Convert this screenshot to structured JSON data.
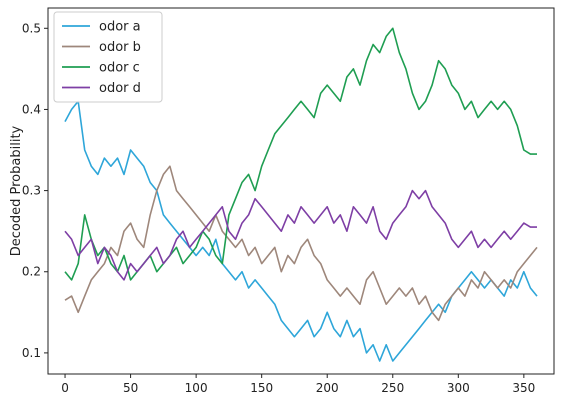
{
  "chart_data": {
    "type": "line",
    "title": "",
    "xlabel": "",
    "ylabel": "Decoded Probability",
    "xlim": [
      -13,
      373
    ],
    "ylim": [
      0.074,
      0.525
    ],
    "xticks": [
      0,
      50,
      100,
      150,
      200,
      250,
      300,
      350
    ],
    "yticks": [
      0.1,
      0.2,
      0.3,
      0.4,
      0.5
    ],
    "grid": false,
    "legend": "top-left",
    "series": [
      {
        "name": "odor a",
        "color": "#2ea6d9",
        "x": [
          0,
          5,
          10,
          15,
          20,
          25,
          30,
          35,
          40,
          45,
          50,
          55,
          60,
          65,
          70,
          75,
          80,
          85,
          90,
          95,
          100,
          105,
          110,
          115,
          120,
          125,
          130,
          135,
          140,
          145,
          150,
          155,
          160,
          165,
          170,
          175,
          180,
          185,
          190,
          195,
          200,
          205,
          210,
          215,
          220,
          225,
          230,
          235,
          240,
          245,
          250,
          255,
          260,
          265,
          270,
          275,
          280,
          285,
          290,
          295,
          300,
          305,
          310,
          315,
          320,
          325,
          330,
          335,
          340,
          345,
          350,
          355,
          360
        ],
        "values": [
          0.385,
          0.4,
          0.41,
          0.35,
          0.33,
          0.32,
          0.34,
          0.33,
          0.34,
          0.32,
          0.35,
          0.34,
          0.33,
          0.31,
          0.3,
          0.27,
          0.26,
          0.25,
          0.24,
          0.23,
          0.22,
          0.23,
          0.22,
          0.24,
          0.21,
          0.2,
          0.19,
          0.2,
          0.18,
          0.19,
          0.18,
          0.17,
          0.16,
          0.14,
          0.13,
          0.12,
          0.13,
          0.14,
          0.12,
          0.13,
          0.15,
          0.13,
          0.12,
          0.14,
          0.12,
          0.13,
          0.1,
          0.11,
          0.09,
          0.11,
          0.09,
          0.1,
          0.11,
          0.12,
          0.13,
          0.14,
          0.15,
          0.16,
          0.15,
          0.17,
          0.18,
          0.19,
          0.2,
          0.19,
          0.18,
          0.19,
          0.18,
          0.17,
          0.19,
          0.18,
          0.2,
          0.18,
          0.17
        ]
      },
      {
        "name": "odor b",
        "color": "#9e877b",
        "x": [
          0,
          5,
          10,
          15,
          20,
          25,
          30,
          35,
          40,
          45,
          50,
          55,
          60,
          65,
          70,
          75,
          80,
          85,
          90,
          95,
          100,
          105,
          110,
          115,
          120,
          125,
          130,
          135,
          140,
          145,
          150,
          155,
          160,
          165,
          170,
          175,
          180,
          185,
          190,
          195,
          200,
          205,
          210,
          215,
          220,
          225,
          230,
          235,
          240,
          245,
          250,
          255,
          260,
          265,
          270,
          275,
          280,
          285,
          290,
          295,
          300,
          305,
          310,
          315,
          320,
          325,
          330,
          335,
          340,
          345,
          350,
          355,
          360
        ],
        "values": [
          0.165,
          0.17,
          0.15,
          0.17,
          0.19,
          0.2,
          0.21,
          0.23,
          0.22,
          0.25,
          0.26,
          0.24,
          0.23,
          0.27,
          0.3,
          0.32,
          0.33,
          0.3,
          0.29,
          0.28,
          0.27,
          0.26,
          0.25,
          0.27,
          0.25,
          0.24,
          0.23,
          0.24,
          0.22,
          0.23,
          0.21,
          0.22,
          0.23,
          0.2,
          0.22,
          0.21,
          0.23,
          0.24,
          0.22,
          0.21,
          0.19,
          0.18,
          0.17,
          0.18,
          0.17,
          0.16,
          0.19,
          0.2,
          0.18,
          0.16,
          0.17,
          0.18,
          0.17,
          0.18,
          0.16,
          0.17,
          0.15,
          0.14,
          0.16,
          0.17,
          0.18,
          0.17,
          0.19,
          0.18,
          0.2,
          0.19,
          0.18,
          0.19,
          0.18,
          0.2,
          0.21,
          0.22,
          0.23
        ]
      },
      {
        "name": "odor c",
        "color": "#1f9e52",
        "x": [
          0,
          5,
          10,
          15,
          20,
          25,
          30,
          35,
          40,
          45,
          50,
          55,
          60,
          65,
          70,
          75,
          80,
          85,
          90,
          95,
          100,
          105,
          110,
          115,
          120,
          125,
          130,
          135,
          140,
          145,
          150,
          155,
          160,
          165,
          170,
          175,
          180,
          185,
          190,
          195,
          200,
          205,
          210,
          215,
          220,
          225,
          230,
          235,
          240,
          245,
          250,
          255,
          260,
          265,
          270,
          275,
          280,
          285,
          290,
          295,
          300,
          305,
          310,
          315,
          320,
          325,
          330,
          335,
          340,
          345,
          350,
          355,
          360
        ],
        "values": [
          0.2,
          0.19,
          0.21,
          0.27,
          0.24,
          0.22,
          0.23,
          0.21,
          0.2,
          0.22,
          0.19,
          0.2,
          0.21,
          0.22,
          0.2,
          0.21,
          0.22,
          0.23,
          0.21,
          0.22,
          0.23,
          0.25,
          0.24,
          0.22,
          0.21,
          0.27,
          0.29,
          0.31,
          0.32,
          0.3,
          0.33,
          0.35,
          0.37,
          0.38,
          0.39,
          0.4,
          0.41,
          0.4,
          0.39,
          0.42,
          0.43,
          0.42,
          0.41,
          0.44,
          0.45,
          0.43,
          0.46,
          0.48,
          0.47,
          0.49,
          0.5,
          0.47,
          0.45,
          0.42,
          0.4,
          0.41,
          0.43,
          0.46,
          0.45,
          0.43,
          0.42,
          0.4,
          0.41,
          0.39,
          0.4,
          0.41,
          0.4,
          0.41,
          0.4,
          0.38,
          0.35,
          0.345,
          0.345
        ]
      },
      {
        "name": "odor d",
        "color": "#7e3fa5",
        "x": [
          0,
          5,
          10,
          15,
          20,
          25,
          30,
          35,
          40,
          45,
          50,
          55,
          60,
          65,
          70,
          75,
          80,
          85,
          90,
          95,
          100,
          105,
          110,
          115,
          120,
          125,
          130,
          135,
          140,
          145,
          150,
          155,
          160,
          165,
          170,
          175,
          180,
          185,
          190,
          195,
          200,
          205,
          210,
          215,
          220,
          225,
          230,
          235,
          240,
          245,
          250,
          255,
          260,
          265,
          270,
          275,
          280,
          285,
          290,
          295,
          300,
          305,
          310,
          315,
          320,
          325,
          330,
          335,
          340,
          345,
          350,
          355,
          360
        ],
        "values": [
          0.25,
          0.24,
          0.22,
          0.23,
          0.24,
          0.21,
          0.23,
          0.22,
          0.2,
          0.19,
          0.21,
          0.2,
          0.21,
          0.22,
          0.23,
          0.21,
          0.22,
          0.24,
          0.25,
          0.23,
          0.24,
          0.25,
          0.26,
          0.27,
          0.28,
          0.25,
          0.24,
          0.26,
          0.27,
          0.29,
          0.28,
          0.27,
          0.26,
          0.25,
          0.27,
          0.26,
          0.28,
          0.27,
          0.26,
          0.27,
          0.28,
          0.26,
          0.27,
          0.25,
          0.28,
          0.27,
          0.26,
          0.28,
          0.25,
          0.24,
          0.26,
          0.27,
          0.28,
          0.3,
          0.29,
          0.3,
          0.28,
          0.27,
          0.26,
          0.24,
          0.23,
          0.24,
          0.25,
          0.23,
          0.24,
          0.23,
          0.24,
          0.25,
          0.24,
          0.25,
          0.26,
          0.255,
          0.255
        ]
      }
    ]
  }
}
